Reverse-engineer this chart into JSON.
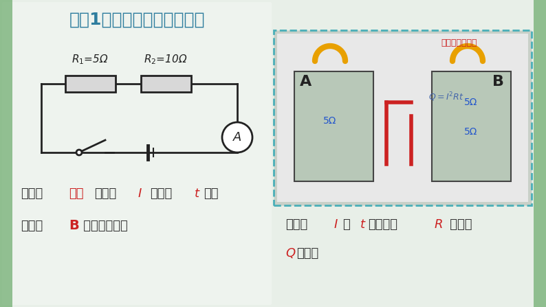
{
  "title": "实验1：研究电热与电阻关系",
  "title_color": "#2e7d9e",
  "title_fontsize": 18,
  "bg_color": "#e8efe8",
  "left_bg": "#f0f4f0",
  "r1_label": "$R_1$=5Ω",
  "r2_label": "$R_2$=10Ω",
  "condition_label": "条件：",
  "condition_text1": "容器",
  "condition_text2": "相同，",
  "condition_italic_I": "I",
  "condition_text3": "相同，",
  "condition_italic_t": "t",
  "condition_text4": "相同",
  "condition_color": "#333333",
  "condition_highlight": "#cc2222",
  "phenomenon_label": "现象：",
  "phenomenon_B": "B",
  "phenomenon_text": " 中液面上升多",
  "phenomenon_color": "#333333",
  "phenomenon_highlight": "#cc2222",
  "conclusion_label": "结论：",
  "conclusion_line1_1": "I",
  "conclusion_line1_2": "和 ",
  "conclusion_line1_3": "t",
  "conclusion_line1_4": "相同时，",
  "conclusion_line1_5": "R",
  "conclusion_line1_6": " 越大，",
  "conclusion_line2_1": "Q",
  "conclusion_line2_2": "越多。",
  "conclusion_color": "#333333",
  "conclusion_highlight": "#cc2222",
  "photo_border_color": "#4aafb8",
  "photo_label_A": "A",
  "photo_label_B": "B",
  "photo_title": "焦耳定律演示器",
  "photo_formula": "$Q=I^2Rt$",
  "photo_5ohm_A": "5Ω",
  "photo_5ohm_B1": "5Ω",
  "photo_5ohm_B2": "5Ω"
}
